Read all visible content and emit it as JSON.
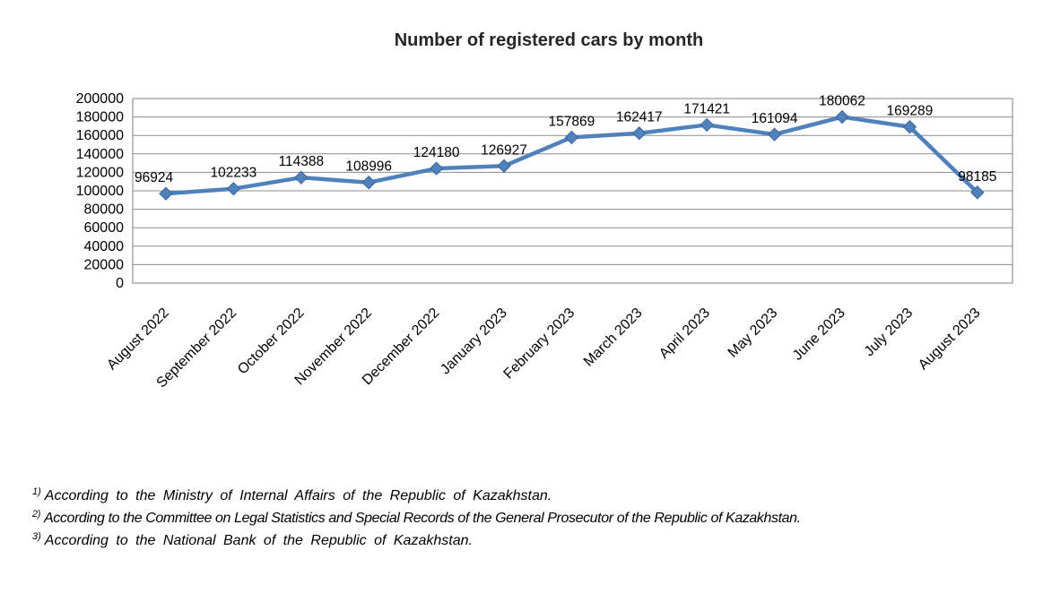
{
  "title": "Number of registered cars by month",
  "chart_data": {
    "type": "line",
    "title": "Number of registered cars by month",
    "categories": [
      "August 2022",
      "September 2022",
      "October 2022",
      "November 2022",
      "December 2022",
      "January 2023",
      "February 2023",
      "March 2023",
      "April 2023",
      "May 2023",
      "June 2023",
      "July 2023",
      "August 2023"
    ],
    "series": [
      {
        "name": "Number of registered cars",
        "values": [
          96924,
          102233,
          114388,
          108996,
          124180,
          126927,
          157869,
          162417,
          171421,
          161094,
          180062,
          169289,
          98185
        ]
      }
    ],
    "xlabel": "",
    "ylabel": "",
    "ylim": [
      0,
      200000
    ],
    "ytick_step": 20000,
    "grid": true,
    "legend_position": "none",
    "data_labels": true,
    "marker": "diamond",
    "colors": {
      "series_line": "#4F81BD",
      "marker_fill": "#4F81BD",
      "marker_stroke": "#3A679A",
      "gridline": "#8C8C8C",
      "plot_border": "#7F7F7F",
      "label_text": "#000000",
      "title_text": "#262626"
    }
  },
  "footnotes": [
    {
      "sup": "1)",
      "text": "According to the Ministry of Internal Affairs of the Republic of Kazakhstan."
    },
    {
      "sup": "2)",
      "text": "According to the Committee on Legal Statistics and Special Records of the General Prosecutor of the Republic of Kazakhstan."
    },
    {
      "sup": "3)",
      "text": "According to the National Bank of the Republic of Kazakhstan."
    }
  ]
}
